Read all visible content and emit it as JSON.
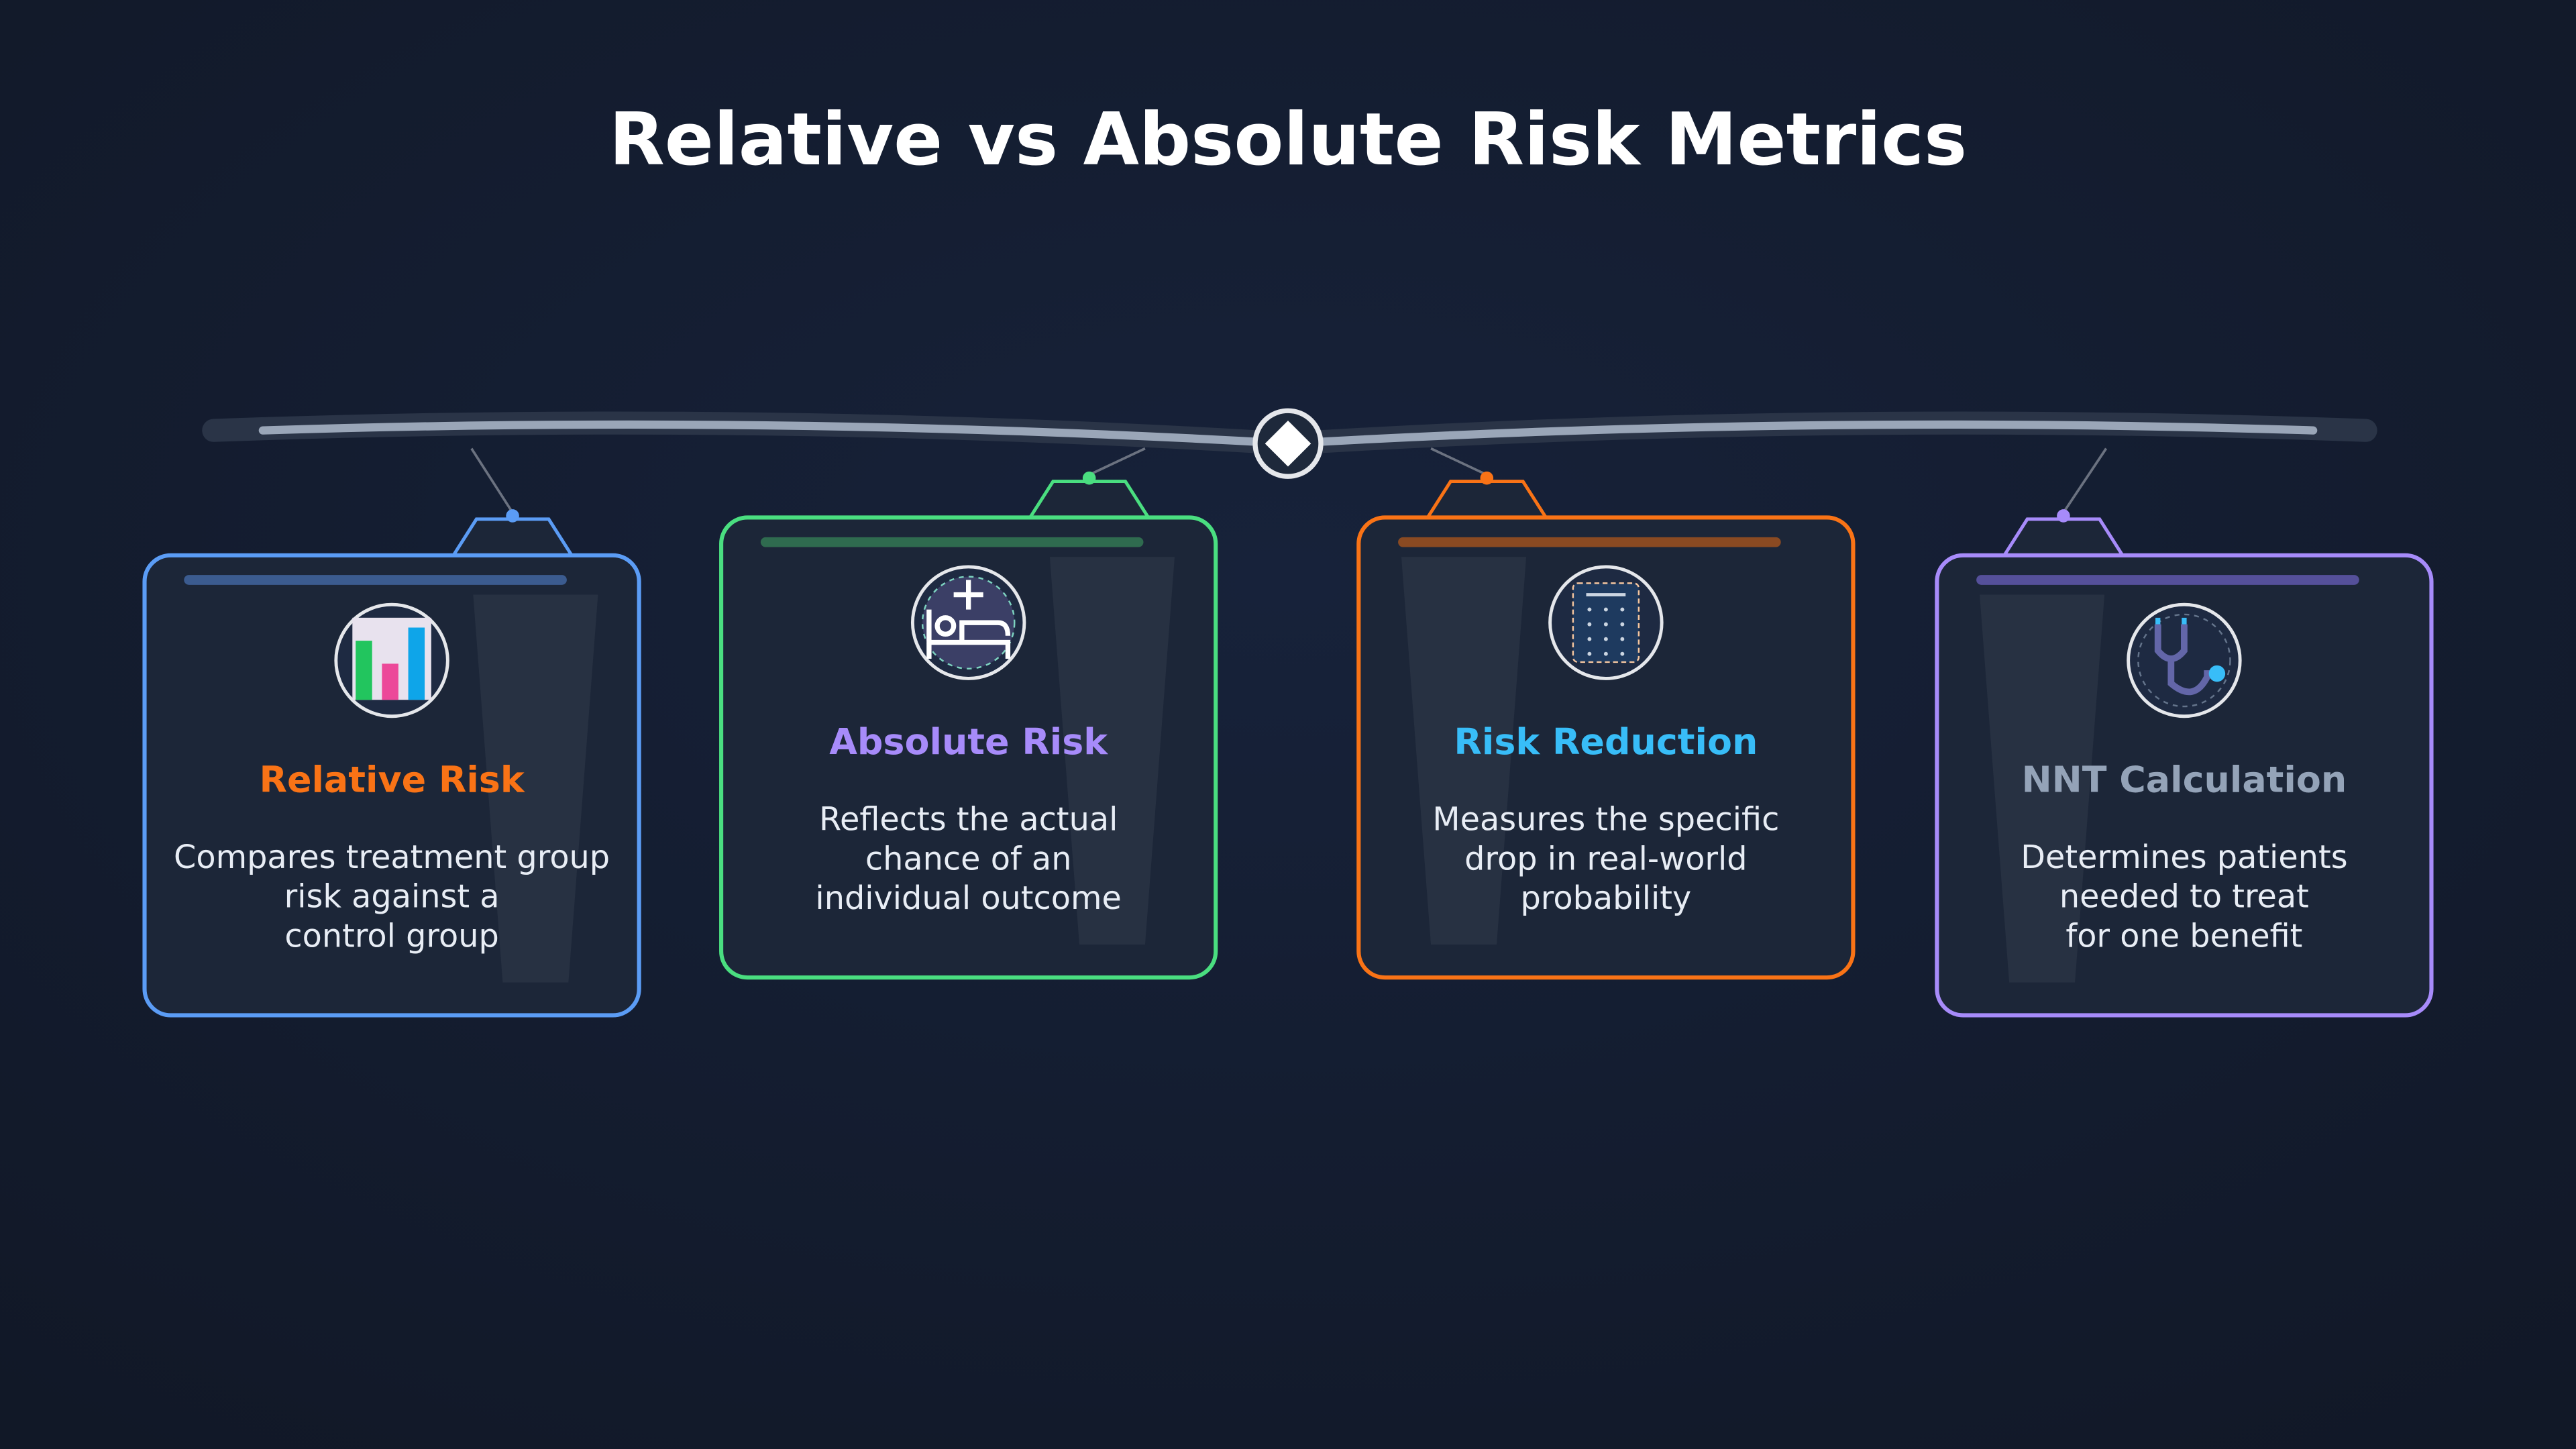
{
  "header": {
    "title": "Relative vs Absolute Risk Metrics"
  },
  "cards": [
    {
      "title": "Relative Risk",
      "description": [
        "Compares treatment group",
        "risk against a",
        "control group"
      ]
    },
    {
      "title": "Absolute Risk",
      "description": [
        "Reflects the actual",
        "chance of an",
        "individual outcome"
      ]
    },
    {
      "title": "Risk Reduction",
      "description": [
        "Measures the specific",
        "drop in real-world",
        "probability"
      ]
    },
    {
      "title": "NNT Calculation",
      "description": [
        "Determines patients",
        "needed to treat",
        "for one benefit"
      ]
    }
  ]
}
